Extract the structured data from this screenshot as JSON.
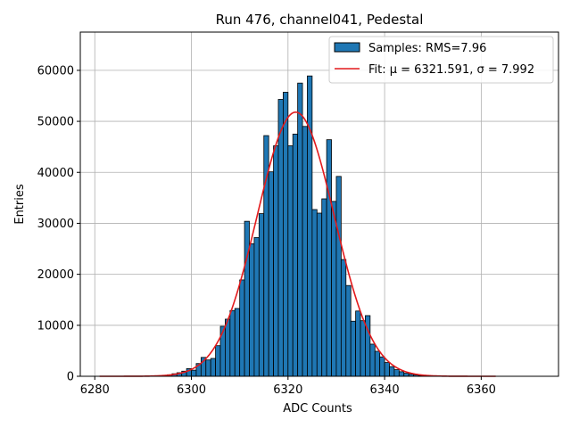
{
  "chart_data": {
    "type": "bar",
    "title": "Run 476, channel041, Pedestal",
    "xlabel": "ADC Counts",
    "ylabel": "Entries",
    "xlim": [
      6277,
      6376
    ],
    "ylim": [
      0,
      67500
    ],
    "xticks": [
      6280,
      6300,
      6320,
      6340,
      6360
    ],
    "yticks": [
      0,
      10000,
      20000,
      30000,
      40000,
      50000,
      60000
    ],
    "grid": true,
    "legend_position": "top-right",
    "colors": {
      "bar_fill": "#1f77b4",
      "bar_edge": "#000000",
      "fit_line": "#e31a1c",
      "grid": "#b0b0b0"
    },
    "series": [
      {
        "name": "Samples: RMS=7.96",
        "kind": "histogram",
        "bin_width": 1,
        "bin_starts": [
          6291,
          6292,
          6293,
          6294,
          6295,
          6296,
          6297,
          6298,
          6299,
          6300,
          6301,
          6302,
          6303,
          6304,
          6305,
          6306,
          6307,
          6308,
          6309,
          6310,
          6311,
          6312,
          6313,
          6314,
          6315,
          6316,
          6317,
          6318,
          6319,
          6320,
          6321,
          6322,
          6323,
          6324,
          6325,
          6326,
          6327,
          6328,
          6329,
          6330,
          6331,
          6332,
          6333,
          6334,
          6335,
          6336,
          6337,
          6338,
          6339,
          6340,
          6341,
          6342,
          6343,
          6344,
          6345,
          6346,
          6347,
          6348,
          6349,
          6350,
          6351,
          6352,
          6353,
          6354,
          6355
        ],
        "values": [
          50,
          80,
          120,
          200,
          300,
          500,
          700,
          1000,
          1500,
          1200,
          2500,
          3700,
          3200,
          3500,
          6000,
          9800,
          11200,
          12900,
          13300,
          18900,
          30400,
          26000,
          27200,
          31900,
          47200,
          40100,
          45200,
          54300,
          55700,
          45200,
          47500,
          57500,
          49000,
          58900,
          32700,
          32000,
          34800,
          46400,
          34300,
          39200,
          22900,
          17800,
          10800,
          12800,
          10900,
          11900,
          6300,
          4900,
          3800,
          2700,
          1900,
          1300,
          900,
          600,
          400,
          250,
          150,
          100,
          60,
          40,
          25,
          15,
          10,
          5,
          3
        ]
      },
      {
        "name": "Fit: μ = 6321.591, σ = 7.992",
        "kind": "gaussian",
        "mu": 6321.591,
        "sigma": 7.992,
        "amplitude": 51800,
        "x_range": [
          6281,
          6363
        ]
      }
    ]
  }
}
